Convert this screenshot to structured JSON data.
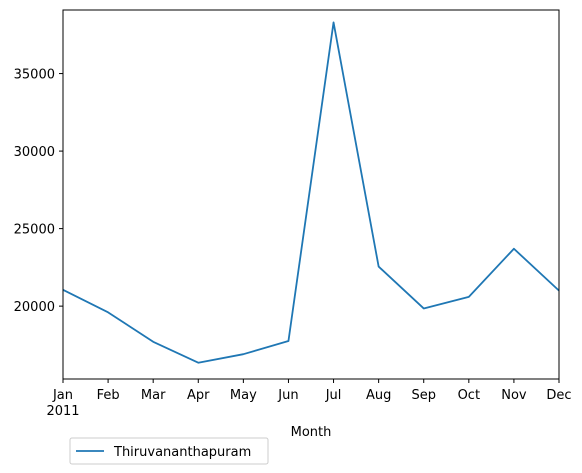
{
  "chart_data": {
    "type": "line",
    "title": "",
    "xlabel": "Month",
    "ylabel": "",
    "x": [
      "Jan",
      "Feb",
      "Mar",
      "Apr",
      "May",
      "Jun",
      "Jul",
      "Aug",
      "Sep",
      "Oct",
      "Nov",
      "Dec"
    ],
    "x_year_label": "2011",
    "yticks": [
      20000,
      25000,
      30000,
      35000
    ],
    "ylim": [
      15300,
      39100
    ],
    "grid": false,
    "legend_position": "below-left",
    "series": [
      {
        "name": "Thiruvananthapuram",
        "color": "#1f77b4",
        "values": [
          21050,
          19600,
          17700,
          16350,
          16900,
          17750,
          38300,
          22550,
          19850,
          20600,
          23700,
          21000
        ]
      }
    ]
  }
}
